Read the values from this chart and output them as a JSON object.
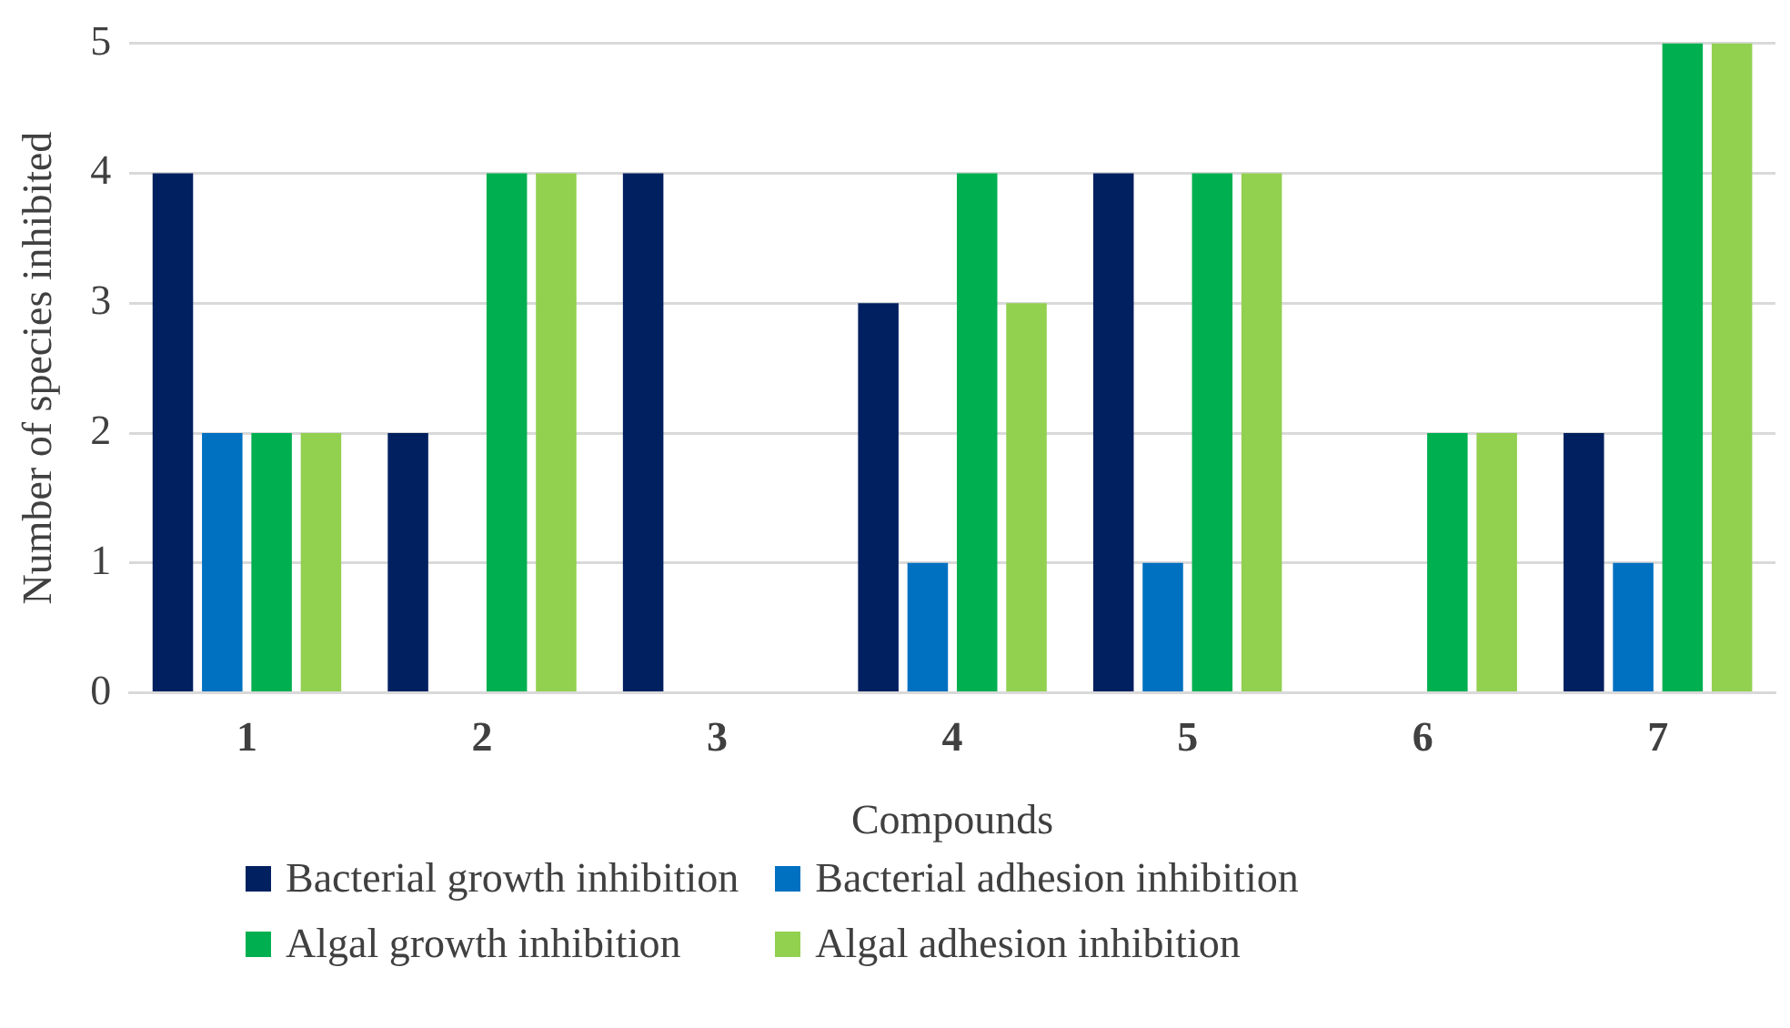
{
  "chart_data": {
    "type": "bar",
    "xlabel": "Compounds",
    "ylabel": "Number of species inhibited",
    "categories": [
      "1",
      "2",
      "3",
      "4",
      "5",
      "6",
      "7"
    ],
    "series": [
      {
        "name": "Bacterial growth inhibition",
        "color": "#002060",
        "values": [
          4,
          2,
          4,
          3,
          4,
          0,
          2
        ]
      },
      {
        "name": "Bacterial adhesion inhibition",
        "color": "#0070c0",
        "values": [
          2,
          0,
          0,
          1,
          1,
          0,
          1
        ]
      },
      {
        "name": "Algal growth inhibition",
        "color": "#00b050",
        "values": [
          2,
          4,
          0,
          4,
          4,
          2,
          5
        ]
      },
      {
        "name": "Algal adhesion inhibition",
        "color": "#92d050",
        "values": [
          2,
          4,
          0,
          3,
          4,
          2,
          5
        ]
      }
    ],
    "ylim": [
      0,
      5
    ],
    "yticks": [
      0,
      1,
      2,
      3,
      4,
      5
    ],
    "grid": "y",
    "legend": "bottom"
  }
}
